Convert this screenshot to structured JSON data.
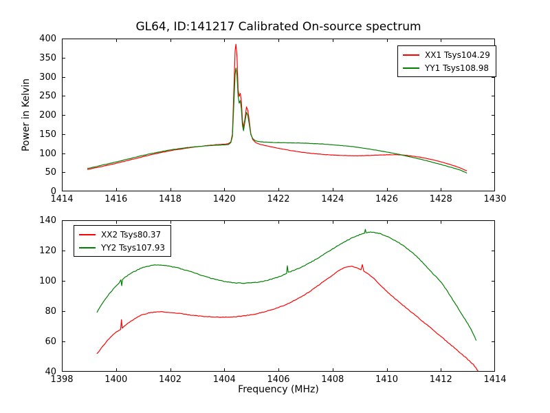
{
  "chart_data": [
    {
      "type": "line",
      "title": "GL64, ID:141217 Calibrated On-source spectrum",
      "xlabel": "",
      "ylabel": "Power in Kelvin",
      "xlim": [
        1414,
        1430
      ],
      "ylim": [
        0,
        400
      ],
      "xticks": [
        1414,
        1416,
        1418,
        1420,
        1422,
        1424,
        1426,
        1428,
        1430
      ],
      "yticks": [
        0,
        50,
        100,
        150,
        200,
        250,
        300,
        350,
        400
      ],
      "grid": false,
      "legend_position": "upper right",
      "series": [
        {
          "name": "XX1 Tsys104.29",
          "color": "#ff0000",
          "points": [
            [
              1414.95,
              57
            ],
            [
              1415.3,
              62.5
            ],
            [
              1415.7,
              68.5
            ],
            [
              1416.1,
              75
            ],
            [
              1416.5,
              82
            ],
            [
              1416.9,
              89
            ],
            [
              1417.3,
              96
            ],
            [
              1417.7,
              102
            ],
            [
              1418.1,
              107.5
            ],
            [
              1418.5,
              112
            ],
            [
              1418.9,
              116
            ],
            [
              1419.3,
              119.5
            ],
            [
              1419.7,
              122
            ],
            [
              1420.0,
              123.5
            ],
            [
              1420.15,
              125
            ],
            [
              1420.24,
              129
            ],
            [
              1420.3,
              150
            ],
            [
              1420.35,
              258
            ],
            [
              1420.4,
              368
            ],
            [
              1420.43,
              385
            ],
            [
              1420.47,
              352
            ],
            [
              1420.51,
              266
            ],
            [
              1420.55,
              249
            ],
            [
              1420.59,
              257
            ],
            [
              1420.63,
              236
            ],
            [
              1420.67,
              186
            ],
            [
              1420.71,
              167
            ],
            [
              1420.76,
              189
            ],
            [
              1420.82,
              221
            ],
            [
              1420.87,
              211
            ],
            [
              1420.92,
              186
            ],
            [
              1420.98,
              151
            ],
            [
              1421.05,
              136
            ],
            [
              1421.15,
              128
            ],
            [
              1421.3,
              123.5
            ],
            [
              1421.6,
              118.5
            ],
            [
              1422.0,
              112.5
            ],
            [
              1422.4,
              107.5
            ],
            [
              1422.8,
              103
            ],
            [
              1423.2,
              99.5
            ],
            [
              1423.6,
              97
            ],
            [
              1424.0,
              95
            ],
            [
              1424.4,
              93.8
            ],
            [
              1424.8,
              93.2
            ],
            [
              1425.2,
              93.5
            ],
            [
              1425.6,
              94.7
            ],
            [
              1426.0,
              95.8
            ],
            [
              1426.3,
              96
            ],
            [
              1426.6,
              95
            ],
            [
              1426.9,
              92.8
            ],
            [
              1427.2,
              89.8
            ],
            [
              1427.5,
              85.8
            ],
            [
              1427.8,
              81
            ],
            [
              1428.1,
              75.5
            ],
            [
              1428.4,
              69
            ],
            [
              1428.7,
              61.8
            ],
            [
              1428.95,
              54
            ]
          ]
        },
        {
          "name": "YY1 Tsys108.98",
          "color": "#007f00",
          "points": [
            [
              1414.95,
              60
            ],
            [
              1415.3,
              65.5
            ],
            [
              1415.7,
              72
            ],
            [
              1416.1,
              78.5
            ],
            [
              1416.5,
              85.5
            ],
            [
              1416.9,
              92.5
            ],
            [
              1417.3,
              99
            ],
            [
              1417.7,
              104.5
            ],
            [
              1418.1,
              109.5
            ],
            [
              1418.5,
              113.5
            ],
            [
              1418.9,
              116.5
            ],
            [
              1419.3,
              119
            ],
            [
              1419.7,
              120.8
            ],
            [
              1420.0,
              121.8
            ],
            [
              1420.15,
              122.8
            ],
            [
              1420.24,
              127
            ],
            [
              1420.3,
              144
            ],
            [
              1420.35,
              224
            ],
            [
              1420.4,
              306
            ],
            [
              1420.43,
              323
            ],
            [
              1420.47,
              303
            ],
            [
              1420.51,
              249
            ],
            [
              1420.55,
              231
            ],
            [
              1420.59,
              238
            ],
            [
              1420.63,
              216
            ],
            [
              1420.67,
              173
            ],
            [
              1420.71,
              159
            ],
            [
              1420.76,
              181
            ],
            [
              1420.82,
              207
            ],
            [
              1420.87,
              198
            ],
            [
              1420.92,
              176
            ],
            [
              1420.98,
              149
            ],
            [
              1421.05,
              138
            ],
            [
              1421.15,
              132.5
            ],
            [
              1421.3,
              130
            ],
            [
              1421.6,
              128.5
            ],
            [
              1422.0,
              127.5
            ],
            [
              1422.4,
              127
            ],
            [
              1422.8,
              126.5
            ],
            [
              1423.2,
              125.5
            ],
            [
              1423.6,
              124
            ],
            [
              1424.0,
              122
            ],
            [
              1424.4,
              119.5
            ],
            [
              1424.8,
              116.5
            ],
            [
              1425.2,
              112.5
            ],
            [
              1425.6,
              108
            ],
            [
              1426.0,
              103
            ],
            [
              1426.4,
              97.5
            ],
            [
              1426.8,
              91.5
            ],
            [
              1427.2,
              85
            ],
            [
              1427.6,
              78
            ],
            [
              1428.0,
              70.5
            ],
            [
              1428.4,
              62.5
            ],
            [
              1428.7,
              56
            ],
            [
              1428.95,
              48.5
            ]
          ]
        }
      ]
    },
    {
      "type": "line",
      "title": "",
      "xlabel": "Frequency (MHz)",
      "ylabel": "",
      "xlim": [
        1398,
        1414
      ],
      "ylim": [
        40,
        140
      ],
      "xticks": [
        1398,
        1400,
        1402,
        1404,
        1406,
        1408,
        1410,
        1412,
        1414
      ],
      "yticks": [
        40,
        60,
        80,
        100,
        120,
        140
      ],
      "grid": false,
      "legend_position": "upper left",
      "series": [
        {
          "name": "XX2 Tsys80.37",
          "color": "#ff0000",
          "points": [
            [
              1399.3,
              52
            ],
            [
              1399.5,
              56.5
            ],
            [
              1399.7,
              61
            ],
            [
              1399.9,
              64.8
            ],
            [
              1400.05,
              66.8
            ],
            [
              1400.17,
              68
            ],
            [
              1400.2,
              74.5
            ],
            [
              1400.23,
              68.8
            ],
            [
              1400.4,
              71.5
            ],
            [
              1400.6,
              74
            ],
            [
              1400.8,
              76.2
            ],
            [
              1401.0,
              77.8
            ],
            [
              1401.2,
              78.8
            ],
            [
              1401.4,
              79.3
            ],
            [
              1401.6,
              79.5
            ],
            [
              1401.8,
              79.4
            ],
            [
              1402.0,
              79.1
            ],
            [
              1402.3,
              78.5
            ],
            [
              1402.6,
              77.8
            ],
            [
              1402.9,
              77.1
            ],
            [
              1403.2,
              76.6
            ],
            [
              1403.5,
              76.2
            ],
            [
              1403.8,
              76.0
            ],
            [
              1404.1,
              76.0
            ],
            [
              1404.4,
              76.3
            ],
            [
              1404.7,
              76.8
            ],
            [
              1405.0,
              77.6
            ],
            [
              1405.3,
              78.7
            ],
            [
              1405.6,
              80.1
            ],
            [
              1405.9,
              81.8
            ],
            [
              1406.2,
              83.8
            ],
            [
              1406.5,
              86.2
            ],
            [
              1406.8,
              89
            ],
            [
              1407.1,
              92.3
            ],
            [
              1407.4,
              96
            ],
            [
              1407.7,
              100
            ],
            [
              1408.0,
              103.8
            ],
            [
              1408.2,
              106.5
            ],
            [
              1408.45,
              108.8
            ],
            [
              1408.7,
              109.6
            ],
            [
              1408.9,
              108.8
            ],
            [
              1409.05,
              107.2
            ],
            [
              1409.1,
              110.8
            ],
            [
              1409.15,
              106.5
            ],
            [
              1409.3,
              104.8
            ],
            [
              1409.5,
              102
            ],
            [
              1409.7,
              98.5
            ],
            [
              1409.95,
              93.8
            ],
            [
              1410.2,
              89.8
            ],
            [
              1410.5,
              85.4
            ],
            [
              1410.8,
              81
            ],
            [
              1411.1,
              76.6
            ],
            [
              1411.4,
              72.2
            ],
            [
              1411.7,
              67.8
            ],
            [
              1412.0,
              63.3
            ],
            [
              1412.3,
              58.8
            ],
            [
              1412.6,
              54.2
            ],
            [
              1412.9,
              49.6
            ],
            [
              1413.2,
              44.8
            ],
            [
              1413.38,
              40.3
            ]
          ]
        },
        {
          "name": "YY2 Tsys107.93",
          "color": "#007f00",
          "points": [
            [
              1399.3,
              79.5
            ],
            [
              1399.45,
              84
            ],
            [
              1399.6,
              88
            ],
            [
              1399.8,
              92.5
            ],
            [
              1400.0,
              96.5
            ],
            [
              1400.12,
              98.8
            ],
            [
              1400.18,
              100.5
            ],
            [
              1400.21,
              97
            ],
            [
              1400.24,
              101
            ],
            [
              1400.4,
              103.2
            ],
            [
              1400.6,
              105.5
            ],
            [
              1400.8,
              107.3
            ],
            [
              1401.0,
              108.8
            ],
            [
              1401.2,
              109.8
            ],
            [
              1401.4,
              110.4
            ],
            [
              1401.6,
              110.5
            ],
            [
              1401.8,
              110.2
            ],
            [
              1402.0,
              109.6
            ],
            [
              1402.3,
              108.5
            ],
            [
              1402.6,
              106.9
            ],
            [
              1402.9,
              105.2
            ],
            [
              1403.2,
              103.4
            ],
            [
              1403.5,
              101.7
            ],
            [
              1403.8,
              100.3
            ],
            [
              1404.1,
              99.3
            ],
            [
              1404.4,
              98.6
            ],
            [
              1404.7,
              98.4
            ],
            [
              1405.0,
              98.6
            ],
            [
              1405.3,
              99.3
            ],
            [
              1405.6,
              100.4
            ],
            [
              1405.9,
              102
            ],
            [
              1406.15,
              103.6
            ],
            [
              1406.3,
              105
            ],
            [
              1406.33,
              110
            ],
            [
              1406.36,
              105.5
            ],
            [
              1406.6,
              107.2
            ],
            [
              1406.9,
              109.5
            ],
            [
              1407.2,
              112.3
            ],
            [
              1407.5,
              115.5
            ],
            [
              1407.8,
              118.8
            ],
            [
              1408.1,
              122.2
            ],
            [
              1408.4,
              125.4
            ],
            [
              1408.7,
              128.2
            ],
            [
              1409.0,
              130.5
            ],
            [
              1409.18,
              131.6
            ],
            [
              1409.21,
              134
            ],
            [
              1409.24,
              131.8
            ],
            [
              1409.4,
              132.1
            ],
            [
              1409.55,
              132
            ],
            [
              1409.75,
              131.2
            ],
            [
              1409.95,
              129.8
            ],
            [
              1410.2,
              127.7
            ],
            [
              1410.5,
              124.6
            ],
            [
              1410.8,
              120.8
            ],
            [
              1411.1,
              116.2
            ],
            [
              1411.4,
              110.8
            ],
            [
              1411.7,
              104.8
            ],
            [
              1412.0,
              99.5
            ],
            [
              1412.3,
              91.5
            ],
            [
              1412.6,
              83
            ],
            [
              1412.9,
              74.5
            ],
            [
              1413.1,
              68.5
            ],
            [
              1413.3,
              61
            ]
          ]
        }
      ]
    }
  ]
}
